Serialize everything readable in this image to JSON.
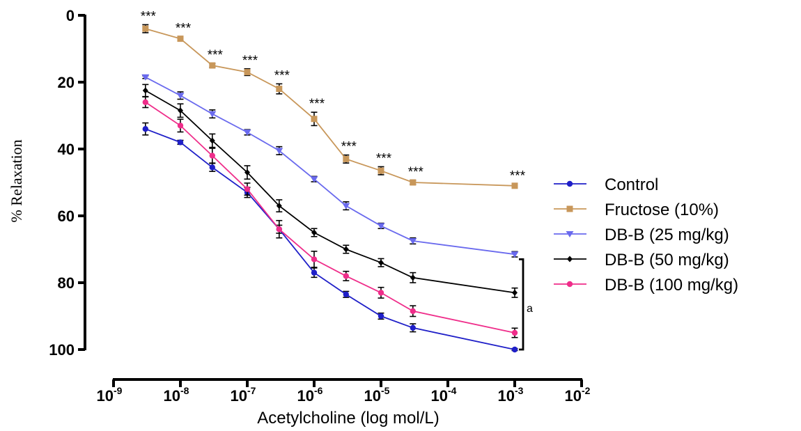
{
  "chart_data": {
    "type": "line",
    "title": "",
    "xlabel": "Acetylcholine (log mol/L)",
    "ylabel": "% Relaxation",
    "x_scale": "log",
    "xlim": [
      1e-09,
      0.01
    ],
    "ylim": [
      0,
      100
    ],
    "y_inverted": true,
    "y_ticks": [
      0,
      20,
      40,
      60,
      80,
      100
    ],
    "x_ticks": [
      {
        "base": "10",
        "exp": "-9"
      },
      {
        "base": "10",
        "exp": "-8"
      },
      {
        "base": "10",
        "exp": "-7"
      },
      {
        "base": "10",
        "exp": "-6"
      },
      {
        "base": "10",
        "exp": "-5"
      },
      {
        "base": "10",
        "exp": "-4"
      },
      {
        "base": "10",
        "exp": "-3"
      },
      {
        "base": "10",
        "exp": "-2"
      }
    ],
    "x": [
      3e-09,
      1e-08,
      3e-08,
      1e-07,
      3e-07,
      1e-06,
      3e-06,
      1e-05,
      3e-05,
      0.001
    ],
    "series": [
      {
        "name": "Control",
        "color": "#1f1fc8",
        "marker": "circle",
        "values": [
          34,
          38,
          45.5,
          53,
          64,
          77,
          83.5,
          90,
          93.5,
          100
        ],
        "errors": [
          1.8,
          0.6,
          1.2,
          1.5,
          1.2,
          1.4,
          0.9,
          0.9,
          1.2,
          0.3
        ]
      },
      {
        "name": "Fructose (10%)",
        "color": "#c8975a",
        "marker": "square",
        "values": [
          4,
          7,
          15,
          17,
          22,
          31,
          43,
          46.5,
          50,
          51
        ],
        "errors": [
          1.2,
          0.6,
          0.6,
          1.0,
          1.5,
          2.0,
          1.2,
          1.2,
          0.6,
          0.5
        ]
      },
      {
        "name": "DB-B (25 mg/kg)",
        "color": "#6a6aee",
        "marker": "triangle-down",
        "values": [
          18.5,
          24,
          29.5,
          35,
          40.5,
          49,
          57,
          63,
          67.5,
          71.5
        ],
        "errors": [
          0.4,
          1.1,
          1.2,
          0.8,
          1.2,
          0.8,
          1.2,
          0.8,
          0.9,
          0.8
        ]
      },
      {
        "name": "DB-B (50 mg/kg)",
        "color": "#000000",
        "marker": "diamond",
        "values": [
          22.5,
          28.5,
          37.5,
          47,
          57,
          65,
          70,
          74,
          78.5,
          83
        ],
        "errors": [
          1.8,
          2.0,
          2.0,
          2.0,
          1.8,
          1.2,
          1.2,
          1.2,
          1.5,
          1.4
        ]
      },
      {
        "name": "DB-B (100 mg/kg)",
        "color": "#ef2d8a",
        "marker": "circle",
        "values": [
          26,
          33,
          42,
          52,
          64,
          73,
          78,
          83,
          88.5,
          95
        ],
        "errors": [
          1.6,
          1.9,
          2.2,
          1.8,
          2.6,
          2.4,
          1.4,
          1.6,
          1.6,
          1.4
        ]
      }
    ],
    "significance": {
      "label": "***",
      "x_indices": [
        0,
        1,
        2,
        3,
        4,
        5,
        6,
        7,
        8,
        9
      ]
    },
    "bracket": {
      "label": "a",
      "x": 0.001,
      "y_range": [
        73,
        100
      ]
    },
    "legend_position": "right"
  }
}
